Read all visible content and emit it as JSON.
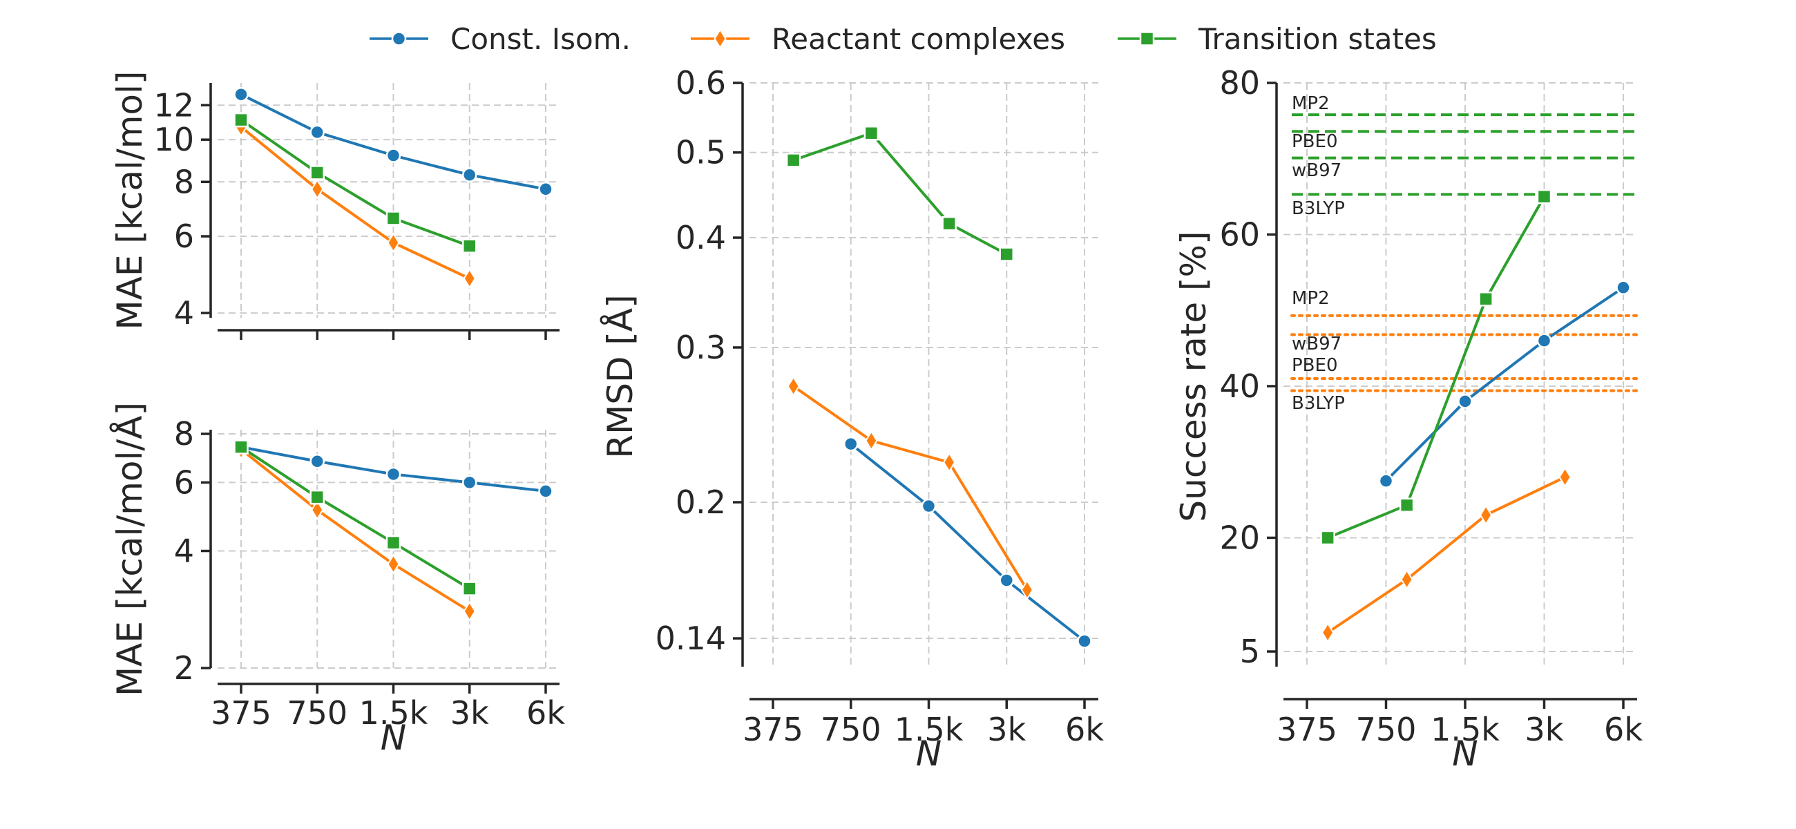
{
  "chart_data": {
    "type": "line",
    "legend": {
      "placement": "top-center",
      "entries": [
        {
          "name": "Const. Isom.",
          "color": "#1f77b4",
          "marker": "circle"
        },
        {
          "name": "Reactant complexes",
          "color": "#ff7f0e",
          "marker": "diamond"
        },
        {
          "name": "Transition states",
          "color": "#2ca02c",
          "marker": "square"
        }
      ]
    },
    "x_ticks": [
      "375",
      "750",
      "1.5k",
      "3k",
      "6k"
    ],
    "x_tick_values": [
      375,
      750,
      1500,
      3000,
      6000
    ],
    "panels": [
      {
        "id": "energy",
        "ylabel": "MAE [kcal/mol]",
        "yscale": "log",
        "ylim": [
          3.9,
          13.5
        ],
        "y_ticks": [
          4,
          6,
          8,
          10,
          12
        ],
        "xlabel": "",
        "series": [
          {
            "name": "Const. Isom.",
            "x": [
              375,
              750,
              1500,
              3000,
              6000
            ],
            "y": [
              12.7,
              10.4,
              9.2,
              8.3,
              7.7
            ]
          },
          {
            "name": "Reactant complexes",
            "x": [
              375,
              750,
              1500,
              3000
            ],
            "y": [
              10.7,
              7.7,
              5.8,
              4.8
            ]
          },
          {
            "name": "Transition states",
            "x": [
              375,
              750,
              1500,
              3000
            ],
            "y": [
              11.1,
              8.4,
              6.6,
              5.7
            ]
          }
        ]
      },
      {
        "id": "forces",
        "ylabel": "MAE [kcal/mol/Å]",
        "yscale": "log",
        "ylim": [
          2.0,
          8.2
        ],
        "y_ticks": [
          2,
          4,
          6,
          8
        ],
        "xlabel": "N",
        "series": [
          {
            "name": "Const. Isom.",
            "x": [
              375,
              750,
              1500,
              3000,
              6000
            ],
            "y": [
              7.4,
              6.8,
              6.3,
              6.0,
              5.7
            ]
          },
          {
            "name": "Reactant complexes",
            "x": [
              375,
              750,
              1500,
              3000
            ],
            "y": [
              7.3,
              5.1,
              3.7,
              2.8
            ]
          },
          {
            "name": "Transition states",
            "x": [
              375,
              750,
              1500,
              3000
            ],
            "y": [
              7.4,
              5.5,
              4.2,
              3.2
            ]
          }
        ]
      },
      {
        "id": "rmsd",
        "ylabel": "RMSD [Å]",
        "yscale": "log",
        "ylim": [
          0.13,
          0.6
        ],
        "y_ticks": [
          0.14,
          0.2,
          0.3,
          0.4,
          0.5,
          0.6
        ],
        "y_tick_labels": [
          "0.14",
          "0.2",
          "0.3",
          "0.4",
          "0.5",
          "0.6"
        ],
        "xlabel": "N",
        "series": [
          {
            "name": "Const. Isom.",
            "x": [
              750,
              1500,
              3000,
              6000
            ],
            "y": [
              0.233,
              0.198,
              0.163,
              0.139
            ]
          },
          {
            "name": "Reactant complexes",
            "x": [
              450,
              900,
              1800,
              3600
            ],
            "y": [
              0.271,
              0.235,
              0.222,
              0.159
            ]
          },
          {
            "name": "Transition states",
            "x": [
              450,
              900,
              1800,
              3000
            ],
            "y": [
              0.49,
              0.526,
              0.415,
              0.383
            ]
          }
        ]
      },
      {
        "id": "success",
        "ylabel": "Success rate [%]",
        "yscale": "linear",
        "ylim": [
          3,
          80
        ],
        "y_ticks": [
          5,
          20,
          40,
          60,
          80
        ],
        "xlabel": "N",
        "series": [
          {
            "name": "Const. Isom.",
            "x": [
              750,
              1500,
              3000,
              6000
            ],
            "y": [
              27.5,
              38.0,
              46.0,
              53.0
            ]
          },
          {
            "name": "Reactant complexes",
            "x": [
              450,
              900,
              1800,
              3600
            ],
            "y": [
              7.5,
              14.5,
              23.0,
              28.0
            ]
          },
          {
            "name": "Transition states",
            "x": [
              450,
              900,
              1800,
              3000
            ],
            "y": [
              20.0,
              24.3,
              51.5,
              65.0
            ]
          }
        ],
        "reference_lines": [
          {
            "label": "MP2",
            "value": 75.8,
            "group": "Transition states",
            "style": "dashed"
          },
          {
            "label": "PBE0",
            "value": 73.6,
            "group": "Transition states",
            "style": "dashed"
          },
          {
            "label": "wB97",
            "value": 70.1,
            "group": "Transition states",
            "style": "dashed"
          },
          {
            "label": "B3LYP",
            "value": 65.3,
            "group": "Transition states",
            "style": "dashed"
          },
          {
            "label": "MP2",
            "value": 49.3,
            "group": "Reactant complexes",
            "style": "dotted"
          },
          {
            "label": "wB97",
            "value": 46.8,
            "group": "Reactant complexes",
            "style": "dotted"
          },
          {
            "label": "PBE0",
            "value": 41.0,
            "group": "Reactant complexes",
            "style": "dotted"
          },
          {
            "label": "B3LYP",
            "value": 39.4,
            "group": "Reactant complexes",
            "style": "dotted"
          }
        ]
      }
    ]
  }
}
